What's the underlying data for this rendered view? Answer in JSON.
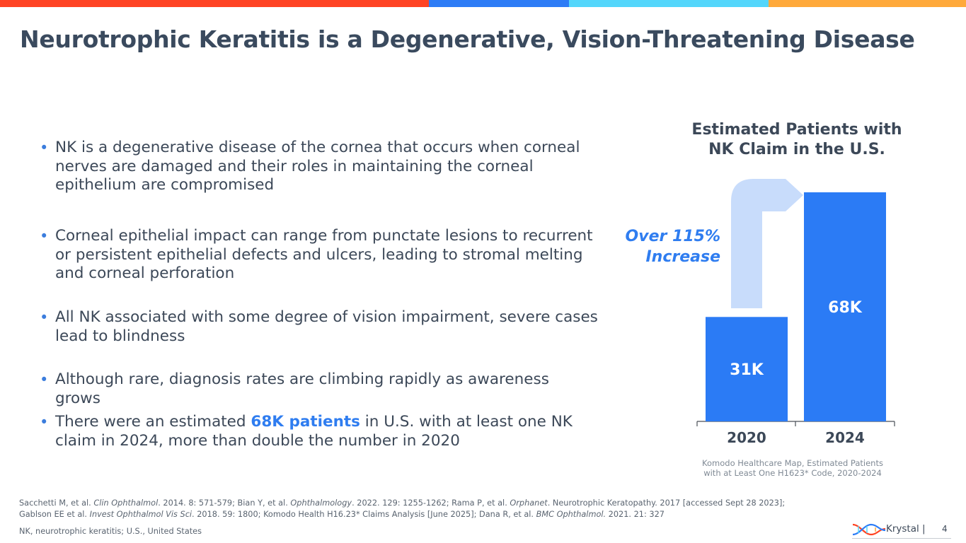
{
  "colors": {
    "accent_blue": "#2f7df0",
    "bar_blue": "#2b7bf5",
    "arrow_light": "#c8dcfb",
    "title": "#3a4a5e",
    "topbar": [
      "#ff4424",
      "#2d7cf6",
      "#53d6fb",
      "#ffa93a"
    ]
  },
  "title": "Neurotrophic Keratitis is a Degenerative, Vision-Threatening Disease",
  "bullets": [
    {
      "text": "NK is a degenerative disease of the cornea that occurs when corneal nerves are damaged and their roles in maintaining the corneal epithelium are compromised"
    },
    {
      "text": "Corneal epithelial impact can range from punctate lesions to recurrent or persistent epithelial defects and ulcers, leading to stromal melting and corneal perforation"
    },
    {
      "text": "All NK associated with some degree of vision impairment, severe cases lead to blindness"
    },
    {
      "text": "Although rare, diagnosis rates are climbing rapidly as awareness grows"
    },
    {
      "pre": "There were an estimated ",
      "highlight": "68K patients",
      "post": " in U.S. with at least one NK claim in 2024, more than double the number in 2020"
    }
  ],
  "bullet_symbol": "•",
  "chart_data": {
    "type": "bar",
    "title": "Estimated Patients with NK Claim in the U.S.",
    "categories": [
      "2020",
      "2024"
    ],
    "values": [
      31,
      68
    ],
    "value_labels": [
      "31K",
      "68K"
    ],
    "unit": "K patients",
    "ylim": [
      0,
      70
    ],
    "annotation": "Over 115% Increase",
    "source": "Komodo Healthcare Map, Estimated Patients with at Least One H1623* Code, 2020-2024"
  },
  "references": {
    "line1_parts": [
      {
        "t": "Sacchetti M, et al. "
      },
      {
        "t": "Clin Ophthalmol",
        "i": true
      },
      {
        "t": ". 2014. 8: 571-579; Bian Y, et al. "
      },
      {
        "t": "Ophthalmology",
        "i": true
      },
      {
        "t": ". 2022. 129: 1255-1262; Rama P, et al. "
      },
      {
        "t": "Orphanet",
        "i": true
      },
      {
        "t": ". Neurotrophic Keratopathy. 2017 [accessed Sept 28 2023];"
      }
    ],
    "line2_parts": [
      {
        "t": "Gablson EE et al. "
      },
      {
        "t": "Invest Ophthalmol Vis Sci",
        "i": true
      },
      {
        "t": ". 2018. 59: 1800; Komodo Health H16.23* Claims Analysis [June 2025]; Dana R, et al. "
      },
      {
        "t": "BMC Ophthalmol.",
        "i": true
      },
      {
        "t": " 2021. 21: 327"
      }
    ]
  },
  "abbreviations": "NK, neurotrophic keratitis; U.S., United States",
  "footer": {
    "brand": "Krystal |",
    "page": "4"
  }
}
